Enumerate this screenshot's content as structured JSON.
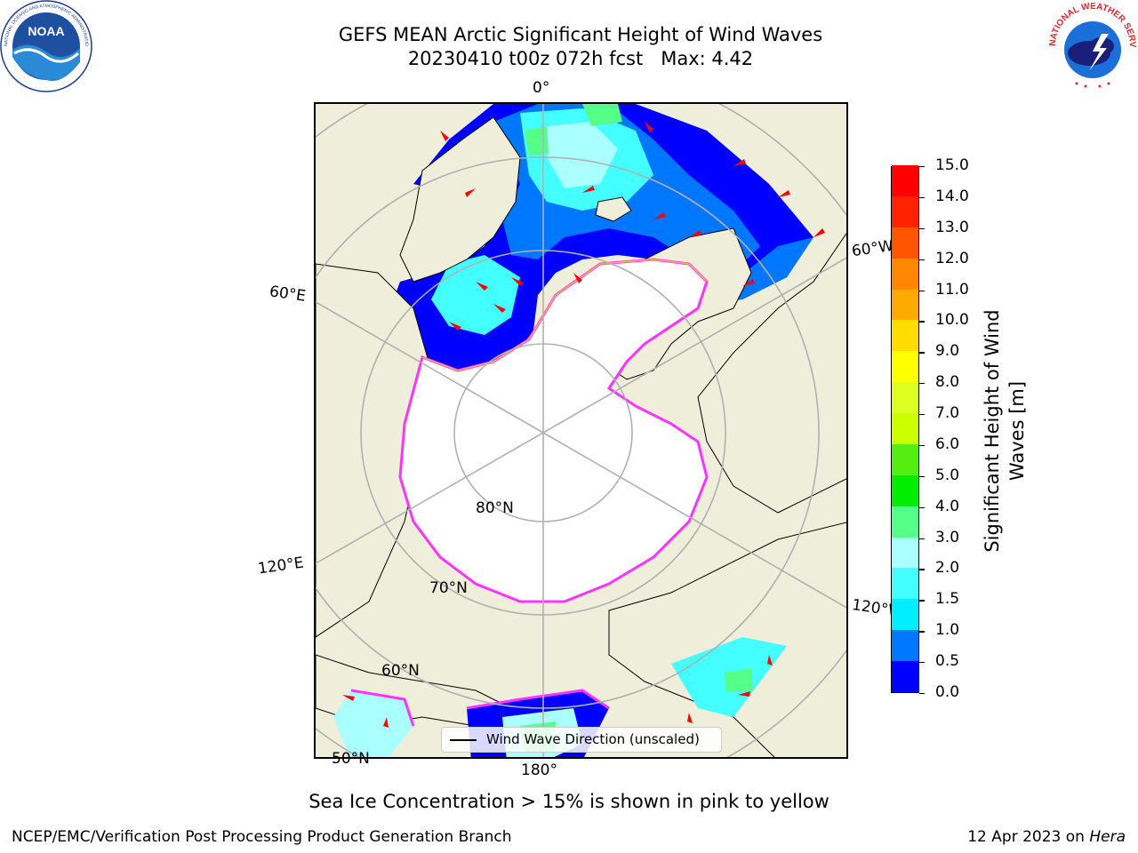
{
  "header": {
    "title_line1": "GEFS MEAN Arctic Significant Height of Wind Waves",
    "title_line2": "20230410 t00z 072h fcst   Max: 4.42"
  },
  "logos": {
    "noaa": {
      "text": "NOAA",
      "ring_text": "NATIONAL OCEANIC AND ATMOSPHERIC ADMINISTRATION · U.S. DEPARTMENT OF COMMERCE"
    },
    "nws": {
      "ring_text": "NATIONAL WEATHER SERVICE"
    }
  },
  "map": {
    "projection": "north-polar-stereographic",
    "longitude_labels": {
      "top": "0°",
      "bottom": "180°",
      "left_upper": "60°E",
      "left_lower": "120°E",
      "right_upper": "60°W",
      "right_lower": "120°W"
    },
    "latitude_labels": {
      "lat80": "80°N",
      "lat70": "70°N",
      "lat60": "60°N",
      "lat50": "50°N"
    },
    "colors": {
      "land": "#efeedb",
      "sea_ice": "#ffffff",
      "ice_edge": "#ff33ff",
      "arrow": "#ff0000",
      "grid": "#b0b0b0"
    },
    "legend": {
      "label": "Wind Wave Direction (unscaled)"
    }
  },
  "colorbar": {
    "title_line1": "Significant Height of Wind",
    "title_line2": "Waves [m]",
    "min": 0.0,
    "max": 15.0,
    "boundaries": [
      0.0,
      0.5,
      1.0,
      1.5,
      2.0,
      3.0,
      4.0,
      5.0,
      6.0,
      7.0,
      8.0,
      9.0,
      10.0,
      11.0,
      12.0,
      13.0,
      14.0,
      15.0
    ],
    "tick_labels": [
      "0.0",
      "0.5",
      "1.0",
      "1.5",
      "2.0",
      "3.0",
      "4.0",
      "5.0",
      "6.0",
      "7.0",
      "8.0",
      "9.0",
      "10.0",
      "11.0",
      "12.0",
      "13.0",
      "14.0",
      "15.0"
    ],
    "colors": [
      "#0000ff",
      "#0077ff",
      "#00eeff",
      "#44ffff",
      "#aaffff",
      "#55ff88",
      "#00ee00",
      "#55ee11",
      "#ccff00",
      "#ddff22",
      "#ffff00",
      "#ffdd00",
      "#ffaa00",
      "#ff8800",
      "#ff5500",
      "#ff2200",
      "#ff0000"
    ]
  },
  "note": "Sea Ice Concentration > 15% is shown in pink to yellow",
  "footer": {
    "left": "NCEP/EMC/Verification Post Processing Product Generation Branch",
    "right_prefix": "12 Apr 2023 on ",
    "right_host": "Hera"
  }
}
